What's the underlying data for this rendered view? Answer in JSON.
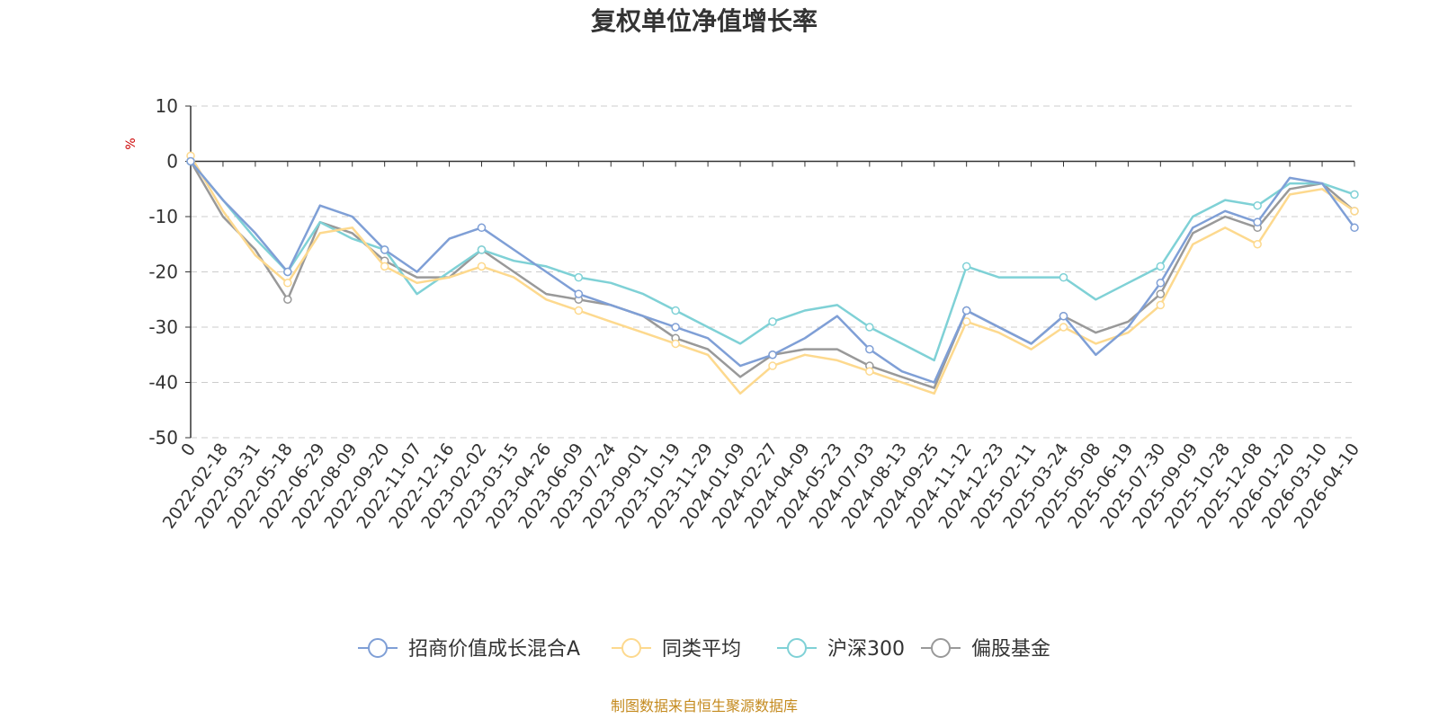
{
  "chart_data": {
    "type": "line",
    "title": "复权单位净值增长率",
    "ylabel": "%",
    "ylim": [
      -50,
      10
    ],
    "yticks": [
      10,
      0,
      -10,
      -20,
      -30,
      -40,
      -50
    ],
    "grid": true,
    "legend_position": "bottom",
    "x": [
      "0",
      "2022-02-18",
      "2022-03-31",
      "2022-05-18",
      "2022-06-29",
      "2022-08-09",
      "2022-09-20",
      "2022-11-07",
      "2022-12-16",
      "2023-02-02",
      "2023-03-15",
      "2023-04-26",
      "2023-06-09",
      "2023-07-24",
      "2023-09-01",
      "2023-10-19",
      "2023-11-29",
      "2024-01-09",
      "2024-02-27",
      "2024-04-09",
      "2024-05-23",
      "2024-07-03",
      "2024-08-13",
      "2024-09-25",
      "2024-11-12",
      "2024-12-23",
      "2025-02-11",
      "2025-03-24",
      "2025-05-08",
      "2025-06-19",
      "2025-07-30",
      "2025-09-09",
      "2025-10-28",
      "2025-12-08",
      "2026-01-20",
      "2026-03-10",
      "2026-04-10"
    ],
    "series": [
      {
        "name": "招商价值成长混合A",
        "color": "#7f9fd6",
        "values": [
          0,
          -7,
          -13,
          -20,
          -8,
          -10,
          -16,
          -20,
          -14,
          -12,
          -16,
          -20,
          -24,
          -26,
          -28,
          -30,
          -32,
          -37,
          -35,
          -32,
          -28,
          -34,
          -38,
          -40,
          -27,
          -30,
          -33,
          -28,
          -35,
          -30,
          -22,
          -12,
          -9,
          -11,
          -3,
          -4,
          -12
        ]
      },
      {
        "name": "同类平均",
        "color": "#fdd98e",
        "values": [
          1,
          -9,
          -17,
          -22,
          -13,
          -12,
          -19,
          -22,
          -21,
          -19,
          -21,
          -25,
          -27,
          -29,
          -31,
          -33,
          -35,
          -42,
          -37,
          -35,
          -36,
          -38,
          -40,
          -42,
          -29,
          -31,
          -34,
          -30,
          -33,
          -31,
          -26,
          -15,
          -12,
          -15,
          -6,
          -5,
          -9
        ]
      },
      {
        "name": "沪深300",
        "color": "#7fd1d6",
        "values": [
          0,
          -7,
          -14,
          -20,
          -11,
          -14,
          -16,
          -24,
          -20,
          -16,
          -18,
          -19,
          -21,
          -22,
          -24,
          -27,
          -30,
          -33,
          -29,
          -27,
          -26,
          -30,
          -33,
          -36,
          -19,
          -21,
          -21,
          -21,
          -25,
          -22,
          -19,
          -10,
          -7,
          -8,
          -4,
          -4,
          -6
        ]
      },
      {
        "name": "偏股基金",
        "color": "#999999",
        "values": [
          0,
          -10,
          -16,
          -25,
          -11,
          -13,
          -18,
          -21,
          -21,
          -16,
          -20,
          -24,
          -25,
          -26,
          -28,
          -32,
          -34,
          -39,
          -35,
          -34,
          -34,
          -37,
          -39,
          -41,
          -27,
          -30,
          -33,
          -28,
          -31,
          -29,
          -24,
          -13,
          -10,
          -12,
          -5,
          -4,
          -9
        ]
      }
    ]
  },
  "source_text": "制图数据来自恒生聚源数据库",
  "colors": {
    "axis": "#333333",
    "grid": "#cccccc",
    "source": "#c48a1e",
    "unit": "#cc0000"
  }
}
